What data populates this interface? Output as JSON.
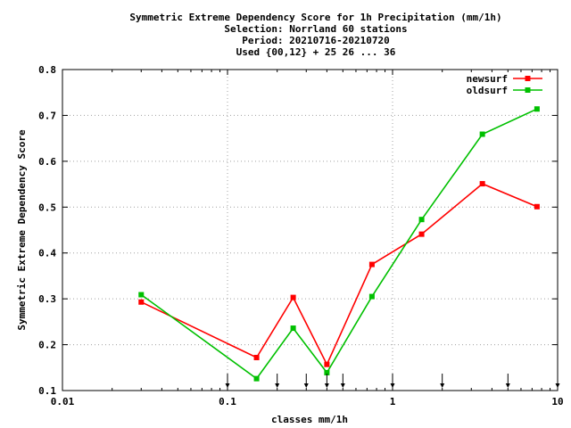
{
  "chart_data": {
    "type": "line",
    "title_lines": [
      "Symmetric Extreme Dependency Score  for 1h Precipitation (mm/1h)",
      "Selection: Norrland     60 stations",
      "Period: 20210716-20210720",
      "Used {00,12} + 25 26 ... 36"
    ],
    "xlabel": "classes mm/1h",
    "ylabel": "Symmetric Extreme Dependency Score",
    "x_scale": "log",
    "xlim": [
      0.01,
      10
    ],
    "ylim": [
      0.1,
      0.8
    ],
    "x_ticks": [
      {
        "value": 0.01,
        "label": "0.01"
      },
      {
        "value": 0.1,
        "label": "0.1"
      },
      {
        "value": 1,
        "label": "1"
      },
      {
        "value": 10,
        "label": "10"
      }
    ],
    "y_ticks": [
      {
        "value": 0.1,
        "label": "0.1"
      },
      {
        "value": 0.2,
        "label": "0.2"
      },
      {
        "value": 0.3,
        "label": "0.3"
      },
      {
        "value": 0.4,
        "label": "0.4"
      },
      {
        "value": 0.5,
        "label": "0.5"
      },
      {
        "value": 0.6,
        "label": "0.6"
      },
      {
        "value": 0.7,
        "label": "0.7"
      },
      {
        "value": 0.8,
        "label": "0.8"
      }
    ],
    "grid": true,
    "legend_position": "top-right",
    "class_limit_arrows": [
      0.1,
      0.2,
      0.3,
      0.4,
      0.5,
      1,
      2,
      5,
      10
    ],
    "series": [
      {
        "name": "newsurf",
        "color": "#ff0000",
        "x": [
          0.03,
          0.15,
          0.25,
          0.4,
          0.75,
          1.5,
          3.5,
          7.5
        ],
        "values": [
          0.293,
          0.172,
          0.303,
          0.157,
          0.375,
          0.441,
          0.551,
          0.501
        ]
      },
      {
        "name": "oldsurf",
        "color": "#00c000",
        "x": [
          0.03,
          0.15,
          0.25,
          0.4,
          0.75,
          1.5,
          3.5,
          7.5
        ],
        "values": [
          0.309,
          0.126,
          0.236,
          0.139,
          0.305,
          0.473,
          0.659,
          0.714
        ]
      }
    ]
  }
}
